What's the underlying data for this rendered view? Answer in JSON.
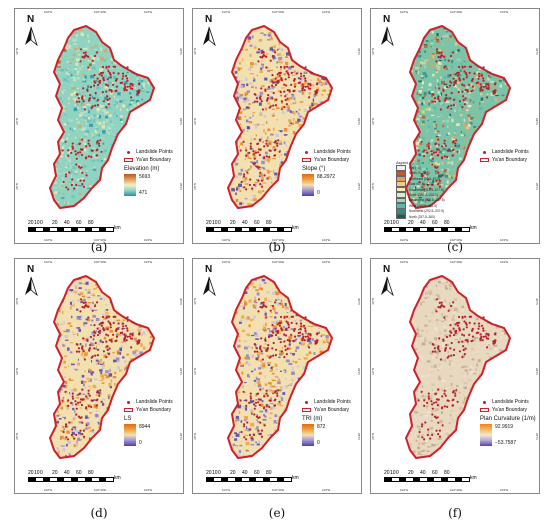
{
  "legend_common": {
    "points_label": "Landslide Points",
    "boundary_label": "Ya'an Boundary",
    "north": "N",
    "scale_unit": "km",
    "scale_ticks": [
      "20",
      "10",
      "0",
      "20",
      "40",
      "60",
      "80"
    ]
  },
  "graticule": {
    "lon_labels": [
      "102°E",
      "102°30'E",
      "103°E"
    ],
    "lat_labels": [
      "28°N",
      "29°N",
      "30°N"
    ]
  },
  "panels": [
    {
      "id": "a",
      "caption": "(a)",
      "title": "Elevation (m)",
      "max": "5693",
      "min": "471",
      "ramp": [
        "#2e8fa8",
        "#8fd3c0",
        "#f4efc6",
        "#e0a060",
        "#c0551c"
      ]
    },
    {
      "id": "b",
      "caption": "(b)",
      "title": "Slope (°)",
      "max": "88.2972",
      "min": "0",
      "ramp": [
        "#4a3fb0",
        "#a090d0",
        "#f3e0b0",
        "#f0a040",
        "#e06a10"
      ]
    },
    {
      "id": "c",
      "caption": "(c)",
      "title": "Aspect (°)"
    },
    {
      "id": "d",
      "caption": "(d)",
      "title": "LS",
      "max": "8944",
      "min": "0",
      "ramp": [
        "#4a3fb0",
        "#a090d0",
        "#f3e0b0",
        "#f0a040",
        "#e06a10"
      ]
    },
    {
      "id": "e",
      "caption": "(e)",
      "title": "TRI (m)",
      "max": "872",
      "min": "0",
      "ramp": [
        "#4a3fb0",
        "#a090d0",
        "#f3e0b0",
        "#f0a040",
        "#e06a10"
      ]
    },
    {
      "id": "f",
      "caption": "(f)",
      "title": "Plan Curvature (1/m)",
      "max": "92.9919",
      "min": "−53.7587",
      "ramp": [
        "#5a3fb0",
        "#b0a8d8",
        "#f3e8d0",
        "#f4b860",
        "#f08020"
      ]
    }
  ],
  "aspect_legend": [
    {
      "label": "Flat (−1)",
      "color": "#f0f0f0"
    },
    {
      "label": "North (0–22.5)",
      "color": "#c85a2a"
    },
    {
      "label": "Northeast (22.5–67.5)",
      "color": "#e0a060"
    },
    {
      "label": "East (67.5–112.5)",
      "color": "#f0d080"
    },
    {
      "label": "Southeast (112.5–157.5)",
      "color": "#f6ecb8"
    },
    {
      "label": "South (157.5–202.5)",
      "color": "#d8eccc"
    },
    {
      "label": "Southwest (202.5–247.5)",
      "color": "#9ed6c0"
    },
    {
      "label": "West (247.5–292.5)",
      "color": "#5cb8a8"
    },
    {
      "label": "Northwest (292.5–337.5)",
      "color": "#2f8f88"
    },
    {
      "label": "North (337.5–360)",
      "color": "#1a5c5a"
    }
  ],
  "colors": {
    "boundary": "#d0202a",
    "points": "#b8222c"
  }
}
